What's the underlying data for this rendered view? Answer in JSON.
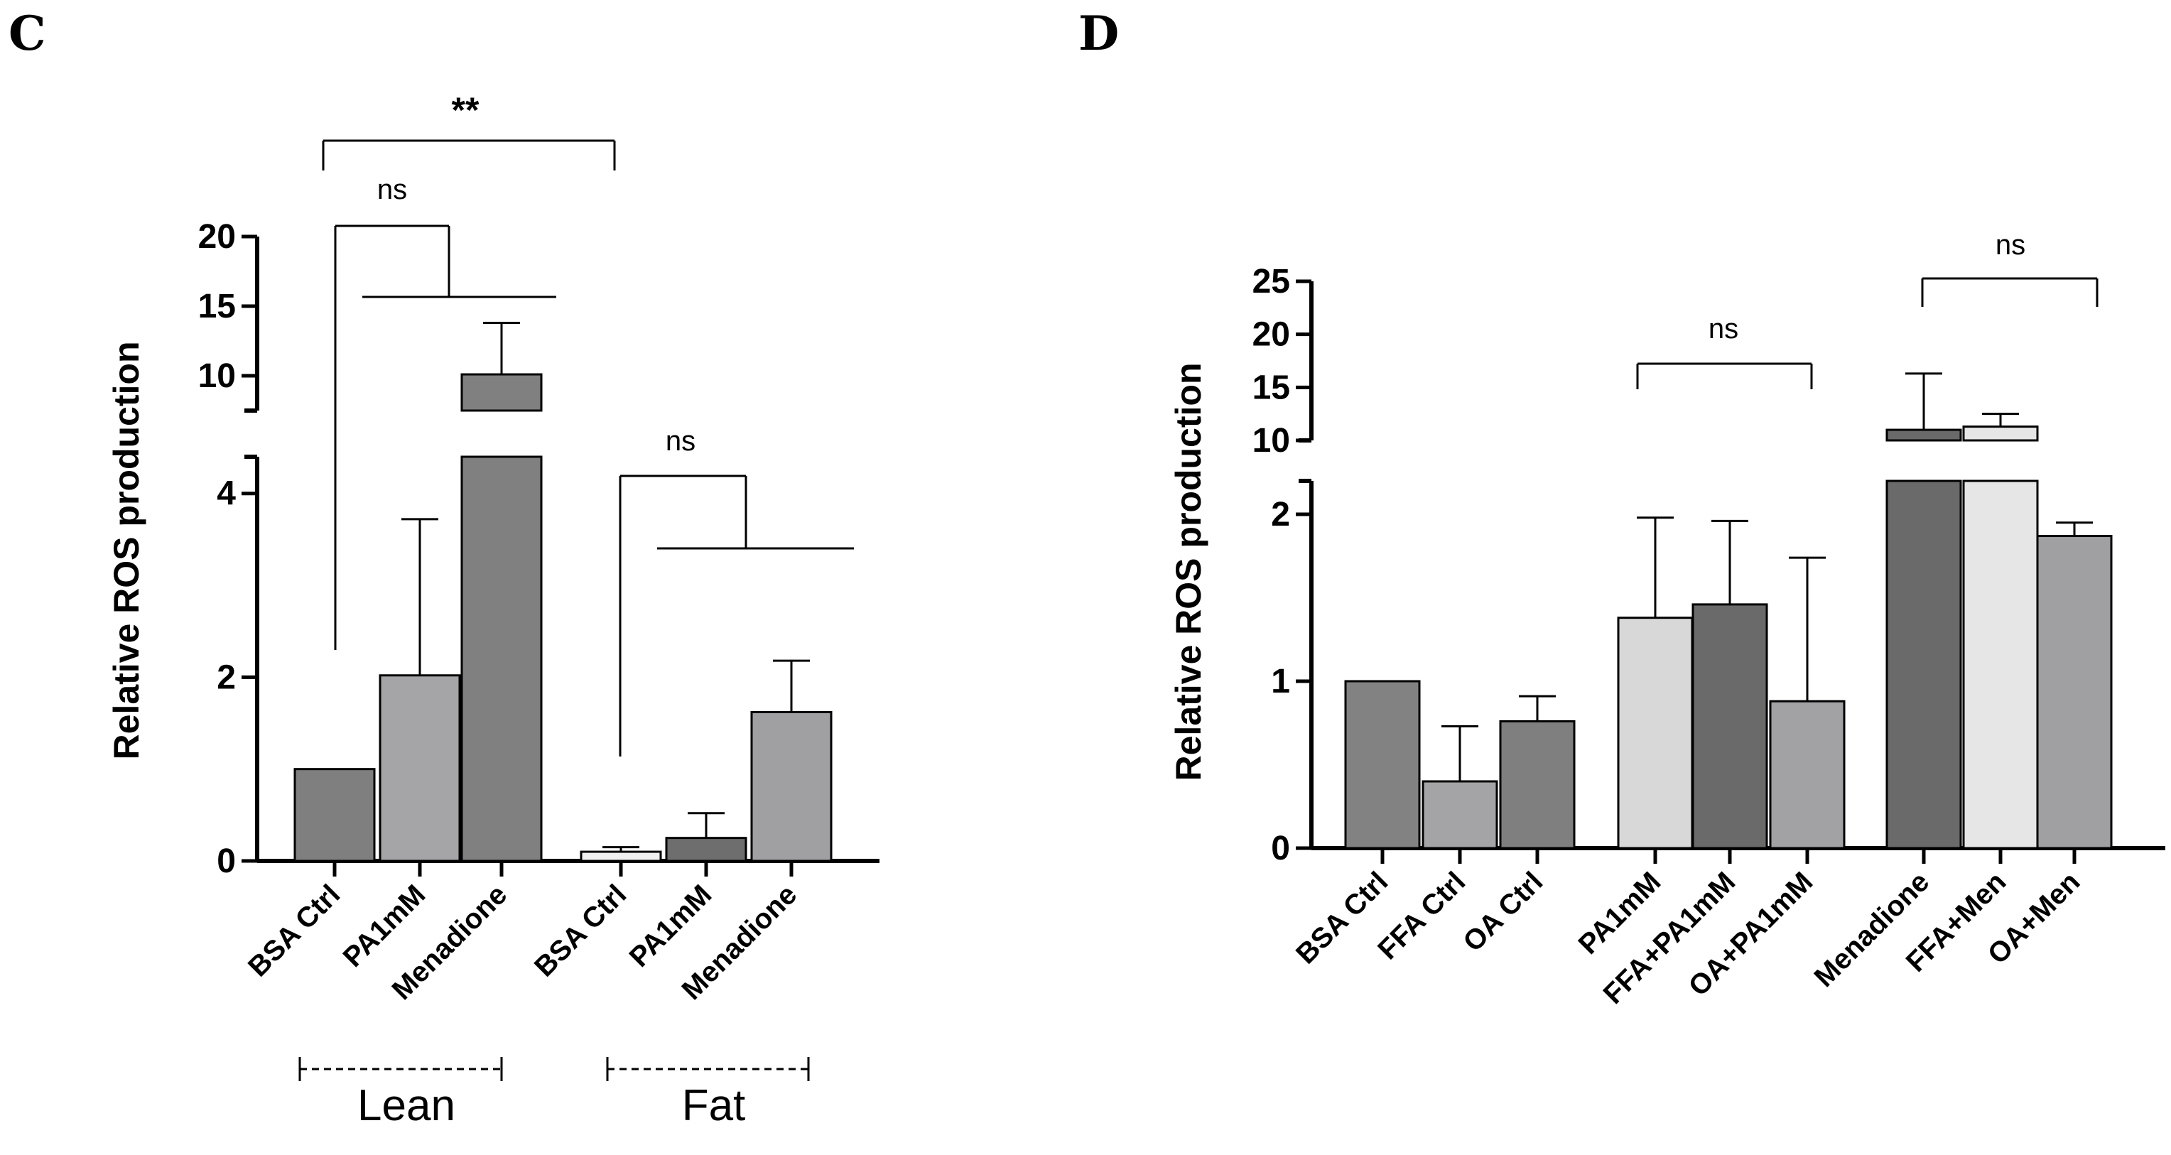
{
  "chart_data": [
    {
      "panel": "C",
      "type": "bar",
      "ylabel": "Relative ROS production",
      "y_axis": {
        "segments": [
          {
            "range": [
              0,
              4.4
            ],
            "ticks": [
              "0",
              "2",
              "4"
            ]
          },
          {
            "range": [
              7.5,
              20
            ],
            "ticks": [
              "10",
              "15",
              "20"
            ]
          }
        ]
      },
      "categories": [
        "BSA Ctrl",
        "PA1mM",
        "Menadione",
        "BSA Ctrl",
        "PA1mM",
        "Menadione"
      ],
      "groups": [
        {
          "label": "Lean",
          "indices": [
            0,
            1,
            2
          ]
        },
        {
          "label": "Fat",
          "indices": [
            3,
            4,
            5
          ]
        }
      ],
      "values": [
        1.0,
        2.02,
        10.1,
        0.1,
        0.25,
        1.62
      ],
      "error_upper": [
        0,
        1.7,
        3.7,
        0.05,
        0.27,
        0.56
      ],
      "bar_colors": [
        "#7f7f7f",
        "#a5a5a7",
        "#808080",
        "#f0f0f0",
        "#6e6e6e",
        "#a0a0a2"
      ],
      "annotations": [
        {
          "text": "**",
          "from": 0,
          "to": 3
        },
        {
          "text": "ns",
          "from": 0,
          "to": [
            1,
            2
          ]
        },
        {
          "text": "ns",
          "from": 3,
          "to": [
            4,
            5
          ]
        }
      ]
    },
    {
      "panel": "D",
      "type": "bar",
      "ylabel": "Relative ROS production",
      "y_axis": {
        "segments": [
          {
            "range": [
              0,
              2.2
            ],
            "ticks": [
              "0",
              "1",
              "2"
            ]
          },
          {
            "range": [
              10,
              25
            ],
            "ticks": [
              "10",
              "15",
              "20",
              "25"
            ]
          }
        ]
      },
      "categories": [
        "BSA Ctrl",
        "FFA Ctrl",
        "OA Ctrl",
        "PA1mM",
        "FFA+PA1mM",
        "OA+PA1mM",
        "Menadione",
        "FFA+Men",
        "OA+Men"
      ],
      "values": [
        1.0,
        0.4,
        0.76,
        1.38,
        1.46,
        0.88,
        11.0,
        11.3,
        1.87
      ],
      "error_upper": [
        0,
        0.33,
        0.15,
        0.6,
        0.5,
        0.86,
        5.3,
        1.2,
        0.08
      ],
      "bar_colors": [
        "#828282",
        "#a4a4a6",
        "#7f7f7f",
        "#d8d8d8",
        "#6a6a6a",
        "#a2a2a4",
        "#6a6a6a",
        "#e6e6e6",
        "#a0a0a2"
      ],
      "annotations": [
        {
          "text": "ns",
          "from": 3,
          "to": 5
        },
        {
          "text": "ns",
          "from": 6,
          "to": 8
        }
      ]
    }
  ]
}
